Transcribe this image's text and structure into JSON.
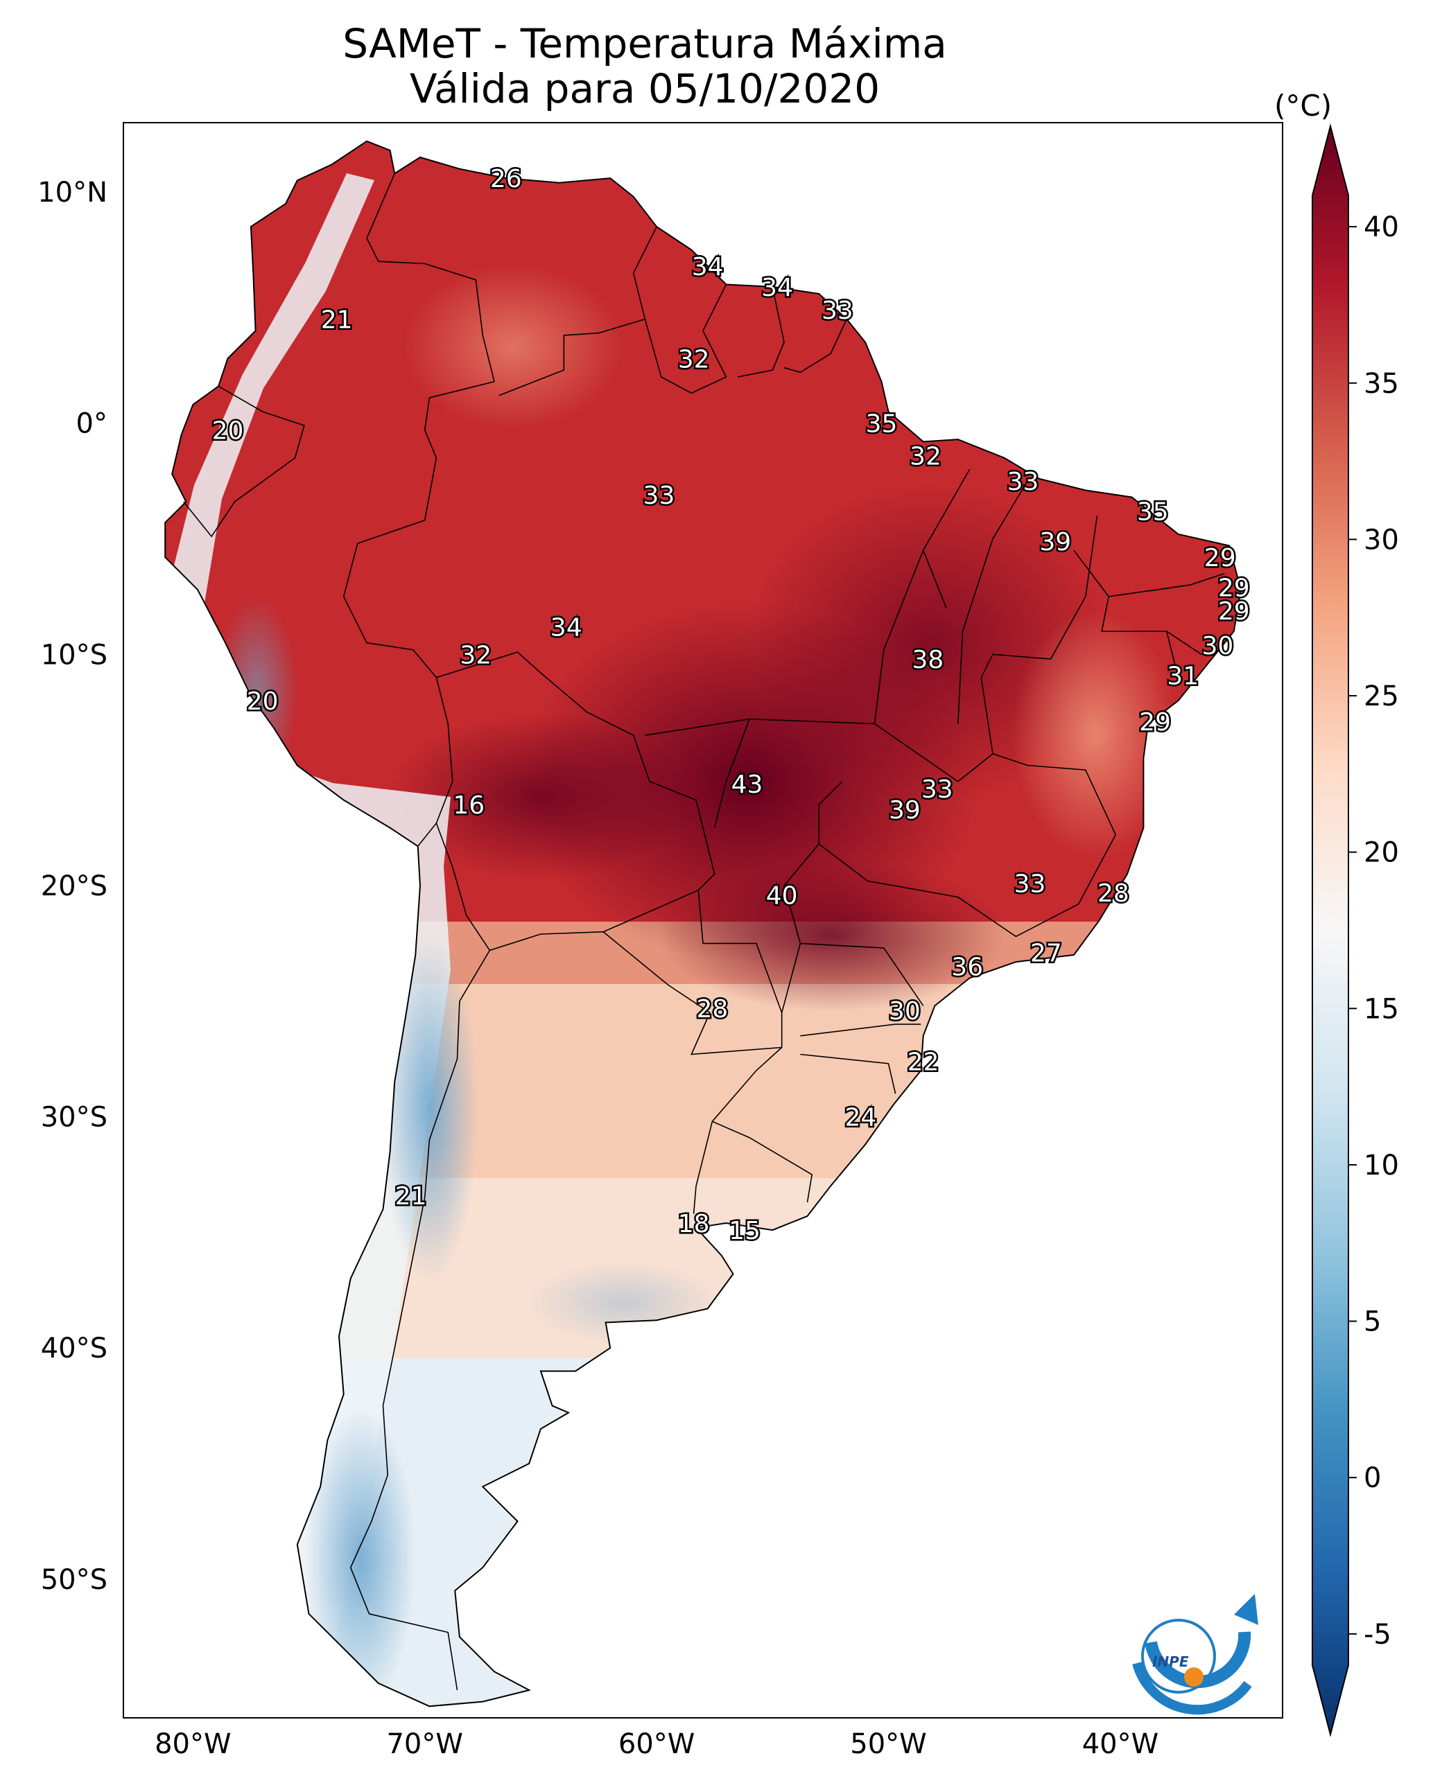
{
  "title_line1": "SAMeT - Temperatura Máxima",
  "title_line2": "Válida para 05/10/2020",
  "colorbar": {
    "unit": "(°C)",
    "ticks": [
      "40",
      "35",
      "30",
      "25",
      "20",
      "15",
      "10",
      "5",
      "0",
      "-5"
    ],
    "range": [
      -5,
      40
    ],
    "colors": [
      "#08306b",
      "#2166ac",
      "#4393c3",
      "#92c5de",
      "#d1e5f0",
      "#f7f7f7",
      "#fddbc7",
      "#f4a582",
      "#d6604d",
      "#b2182b",
      "#67001f"
    ]
  },
  "axes": {
    "lat_labels": [
      "10°N",
      "0°",
      "10°S",
      "20°S",
      "30°S",
      "40°S",
      "50°S"
    ],
    "lon_labels": [
      "80°W",
      "70°W",
      "60°W",
      "50°W",
      "40°W"
    ]
  },
  "station_values": [
    {
      "value": "26",
      "lon": -66.5,
      "lat": 10.6
    },
    {
      "value": "21",
      "lon": -73.8,
      "lat": 4.5
    },
    {
      "value": "34",
      "lon": -57.8,
      "lat": 6.8
    },
    {
      "value": "34",
      "lon": -54.8,
      "lat": 5.9
    },
    {
      "value": "33",
      "lon": -52.2,
      "lat": 4.9
    },
    {
      "value": "32",
      "lon": -58.4,
      "lat": 2.8
    },
    {
      "value": "20",
      "lon": -78.5,
      "lat": -0.3
    },
    {
      "value": "35",
      "lon": -50.3,
      "lat": 0.0
    },
    {
      "value": "32",
      "lon": -48.4,
      "lat": -1.4
    },
    {
      "value": "33",
      "lon": -59.9,
      "lat": -3.1
    },
    {
      "value": "33",
      "lon": -44.2,
      "lat": -2.5
    },
    {
      "value": "35",
      "lon": -38.6,
      "lat": -3.8
    },
    {
      "value": "39",
      "lon": -42.8,
      "lat": -5.1
    },
    {
      "value": "29",
      "lon": -35.7,
      "lat": -5.8
    },
    {
      "value": "29",
      "lon": -35.1,
      "lat": -7.1
    },
    {
      "value": "29",
      "lon": -35.1,
      "lat": -8.1
    },
    {
      "value": "34",
      "lon": -63.9,
      "lat": -8.8
    },
    {
      "value": "32",
      "lon": -67.8,
      "lat": -10.0
    },
    {
      "value": "38",
      "lon": -48.3,
      "lat": -10.2
    },
    {
      "value": "30",
      "lon": -35.8,
      "lat": -9.6
    },
    {
      "value": "31",
      "lon": -37.3,
      "lat": -10.9
    },
    {
      "value": "20",
      "lon": -77.0,
      "lat": -12.0
    },
    {
      "value": "29",
      "lon": -38.5,
      "lat": -12.9
    },
    {
      "value": "43",
      "lon": -56.1,
      "lat": -15.6
    },
    {
      "value": "33",
      "lon": -47.9,
      "lat": -15.8
    },
    {
      "value": "39",
      "lon": -49.3,
      "lat": -16.7
    },
    {
      "value": "16",
      "lon": -68.1,
      "lat": -16.5
    },
    {
      "value": "33",
      "lon": -43.9,
      "lat": -19.9
    },
    {
      "value": "28",
      "lon": -40.3,
      "lat": -20.3
    },
    {
      "value": "40",
      "lon": -54.6,
      "lat": -20.4
    },
    {
      "value": "27",
      "lon": -43.2,
      "lat": -22.9
    },
    {
      "value": "36",
      "lon": -46.6,
      "lat": -23.5
    },
    {
      "value": "28",
      "lon": -57.6,
      "lat": -25.3
    },
    {
      "value": "30",
      "lon": -49.3,
      "lat": -25.4
    },
    {
      "value": "22",
      "lon": -48.5,
      "lat": -27.6
    },
    {
      "value": "24",
      "lon": -51.2,
      "lat": -30.0
    },
    {
      "value": "21",
      "lon": -70.6,
      "lat": -33.4
    },
    {
      "value": "18",
      "lon": -58.4,
      "lat": -34.6
    },
    {
      "value": "15",
      "lon": -56.2,
      "lat": -34.9
    }
  ],
  "logo": {
    "text": "INPE"
  }
}
